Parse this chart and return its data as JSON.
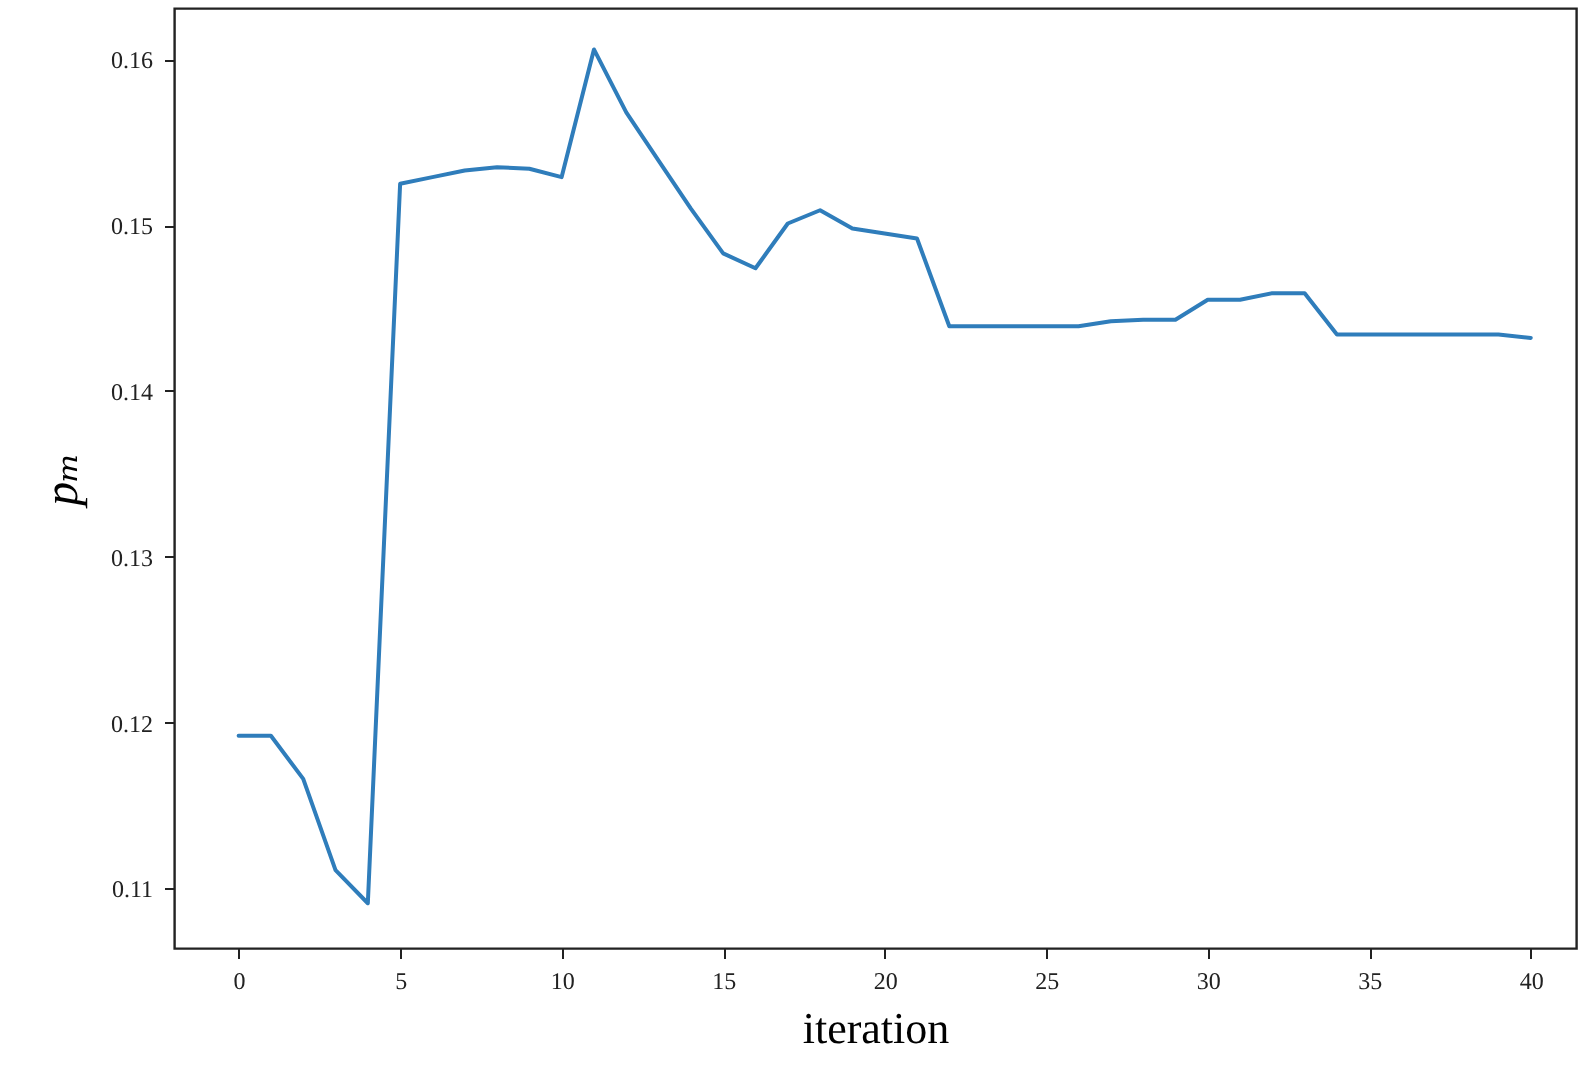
{
  "chart_data": {
    "type": "line",
    "xlabel": "iteration",
    "ylabel": "pₘ",
    "x": [
      0,
      1,
      2,
      3,
      4,
      5,
      6,
      7,
      8,
      9,
      10,
      11,
      12,
      13,
      14,
      15,
      16,
      17,
      18,
      19,
      20,
      21,
      22,
      23,
      24,
      25,
      26,
      27,
      28,
      29,
      30,
      31,
      32,
      33,
      34,
      35,
      36,
      37,
      38,
      39,
      40
    ],
    "series": [
      {
        "color": "#2f7dbb",
        "values": [
          0.1192,
          0.1192,
          0.1166,
          0.1111,
          0.1091,
          0.1525,
          0.1529,
          0.1533,
          0.1535,
          0.1534,
          0.1529,
          0.1606,
          0.1568,
          0.1539,
          0.151,
          0.1483,
          0.1474,
          0.1501,
          0.1509,
          0.1498,
          0.1495,
          0.1492,
          0.1439,
          0.1439,
          0.1439,
          0.1439,
          0.1439,
          0.1442,
          0.1443,
          0.1443,
          0.1455,
          0.1455,
          0.1459,
          0.1459,
          0.1434,
          0.1434,
          0.1434,
          0.1434,
          0.1434,
          0.1434,
          0.1432
        ]
      }
    ],
    "xlim": [
      -2,
      41.4
    ],
    "ylim": [
      0.1064,
      0.1631
    ],
    "xticks": [
      0,
      5,
      10,
      15,
      20,
      25,
      30,
      35,
      40
    ],
    "yticks": [
      0.11,
      0.12,
      0.13,
      0.14,
      0.15,
      0.16
    ],
    "marker": "none",
    "line_style": "solid"
  }
}
